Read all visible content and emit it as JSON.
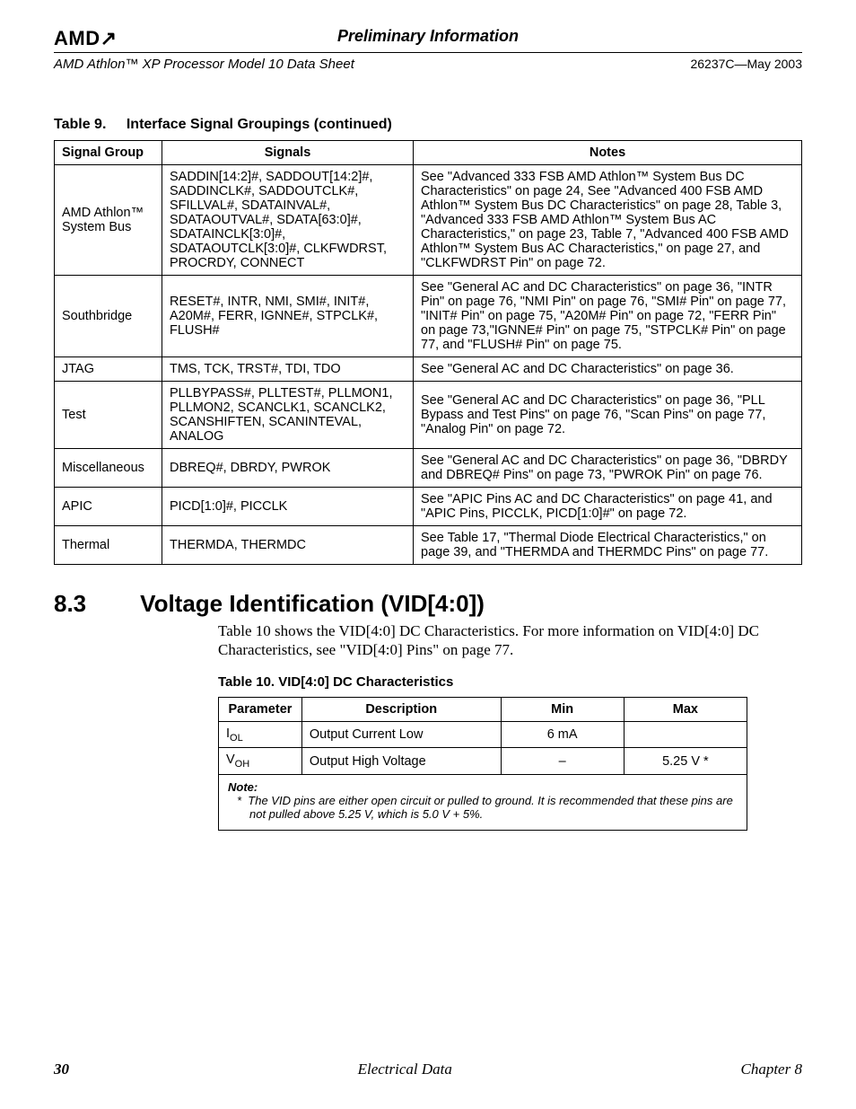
{
  "header": {
    "logo_text": "AMD",
    "center": "Preliminary Information",
    "doc_title": "AMD Athlon™ XP Processor Model 10 Data Sheet",
    "doc_id": "26237C—May 2003"
  },
  "table9": {
    "caption_num": "Table 9.",
    "caption_title": "Interface Signal Groupings (continued)",
    "headers": [
      "Signal Group",
      "Signals",
      "Notes"
    ],
    "rows": [
      {
        "group": "AMD Athlon™ System Bus",
        "signals": "SADDIN[14:2]#, SADDOUT[14:2]#, SADDINCLK#, SADDOUTCLK#, SFILLVAL#, SDATAINVAL#, SDATAOUTVAL#, SDATA[63:0]#, SDATAINCLK[3:0]#, SDATAOUTCLK[3:0]#, CLKFWDRST, PROCRDY, CONNECT",
        "notes": "See \"Advanced 333 FSB AMD Athlon™ System Bus DC Characteristics\" on page 24, See \"Advanced 400 FSB AMD Athlon™ System Bus DC Characteristics\" on page 28, Table 3, \"Advanced 333 FSB AMD Athlon™ System Bus AC Characteristics,\" on page 23, Table 7, \"Advanced 400 FSB AMD Athlon™ System Bus AC Characteristics,\" on page 27, and \"CLKFWDRST Pin\" on page 72."
      },
      {
        "group": "Southbridge",
        "signals": "RESET#, INTR, NMI, SMI#, INIT#, A20M#, FERR, IGNNE#, STPCLK#, FLUSH#",
        "notes": "See \"General AC and DC Characteristics\" on page 36, \"INTR Pin\" on page 76, \"NMI Pin\" on page 76, \"SMI# Pin\" on page 77, \"INIT# Pin\" on page 75, \"A20M# Pin\" on page 72, \"FERR Pin\" on page 73,\"IGNNE# Pin\" on page 75, \"STPCLK# Pin\" on page 77, and \"FLUSH# Pin\" on page 75."
      },
      {
        "group": "JTAG",
        "signals": "TMS, TCK, TRST#, TDI, TDO",
        "notes": "See \"General AC and DC Characteristics\" on page 36."
      },
      {
        "group": "Test",
        "signals": "PLLBYPASS#, PLLTEST#, PLLMON1, PLLMON2, SCANCLK1, SCANCLK2, SCANSHIFTEN, SCANINTEVAL, ANALOG",
        "notes": "See \"General AC and DC Characteristics\" on page 36, \"PLL Bypass and Test Pins\" on page 76, \"Scan Pins\" on page 77, \"Analog Pin\" on page 72."
      },
      {
        "group": "Miscellaneous",
        "signals": "DBREQ#, DBRDY, PWROK",
        "notes": "See \"General AC and DC Characteristics\" on page 36, \"DBRDY and DBREQ# Pins\" on page 73, \"PWROK Pin\" on page 76."
      },
      {
        "group": "APIC",
        "signals": "PICD[1:0]#, PICCLK",
        "notes": "See \"APIC Pins AC and DC Characteristics\" on page 41, and \"APIC Pins, PICCLK, PICD[1:0]#\" on page 72."
      },
      {
        "group": "Thermal",
        "signals": "THERMDA, THERMDC",
        "notes": "See Table 17, \"Thermal Diode Electrical Characteristics,\" on page 39, and \"THERMDA and THERMDC Pins\" on page 77."
      }
    ]
  },
  "section": {
    "num": "8.3",
    "title": "Voltage Identification (VID[4:0])",
    "body": "Table 10 shows the VID[4:0] DC Characteristics. For more information on VID[4:0] DC Characteristics, see \"VID[4:0] Pins\" on page 77."
  },
  "table10": {
    "caption": "Table 10.   VID[4:0] DC Characteristics",
    "headers": [
      "Parameter",
      "Description",
      "Min",
      "Max"
    ],
    "rows": [
      {
        "param_base": "I",
        "param_sub": "OL",
        "desc": "Output Current Low",
        "min": "6 mA",
        "max": ""
      },
      {
        "param_base": "V",
        "param_sub": "OH",
        "desc": "Output High Voltage",
        "min": "–",
        "max": "5.25 V *"
      }
    ],
    "note_label": "Note:",
    "note_marker": "*",
    "note_text": "The VID pins are either open circuit or pulled to ground. It is recommended that these pins are not pulled above 5.25 V, which is 5.0 V + 5%."
  },
  "footer": {
    "page": "30",
    "center": "Electrical Data",
    "chapter": "Chapter 8"
  }
}
